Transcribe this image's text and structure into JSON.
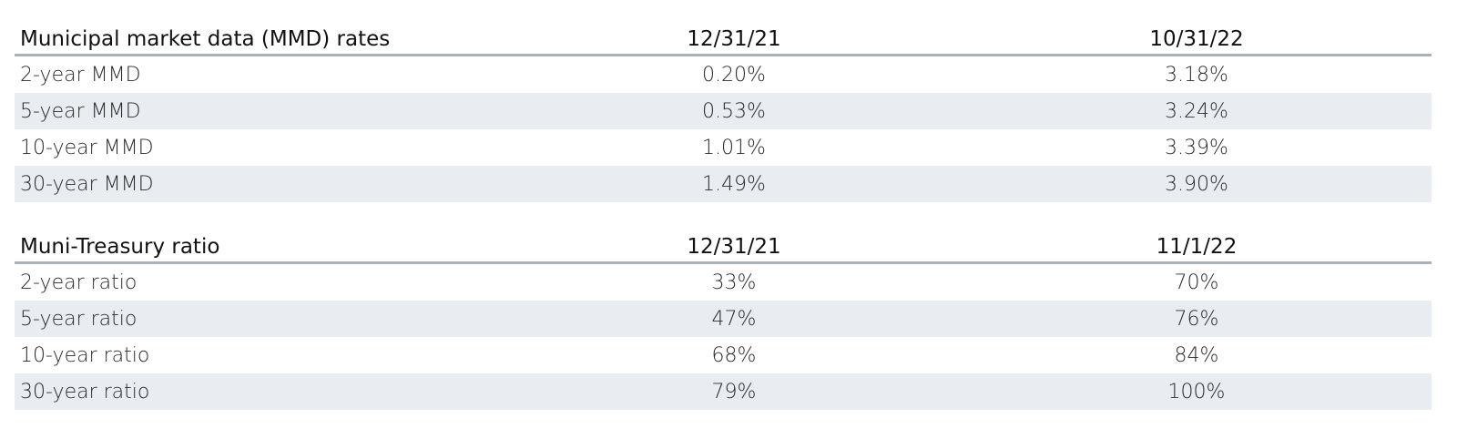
{
  "chart_data": [
    {
      "type": "table",
      "columns": [
        "Municipal market data (MMD) rates",
        "12/31/21",
        "10/31/22"
      ],
      "rows": [
        [
          "2-year MMD",
          "0.20%",
          "3.18%"
        ],
        [
          "5-year MMD",
          "0.53%",
          "3.24%"
        ],
        [
          "10-year MMD",
          "1.01%",
          "3.39%"
        ],
        [
          "30-year MMD",
          "1.49%",
          "3.90%"
        ]
      ]
    },
    {
      "type": "table",
      "columns": [
        "Muni-Treasury ratio",
        "12/31/21",
        "11/1/22"
      ],
      "rows": [
        [
          "2-year ratio",
          "33%",
          "70%"
        ],
        [
          "5-year ratio",
          "47%",
          "76%"
        ],
        [
          "10-year ratio",
          "68%",
          "84%"
        ],
        [
          "30-year ratio",
          "79%",
          "100%"
        ]
      ]
    }
  ],
  "colors": {
    "header_rule": "#a9b0c0",
    "alt_row": "#e9ecf1"
  }
}
